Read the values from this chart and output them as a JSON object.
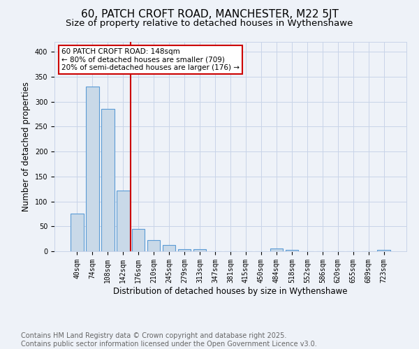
{
  "title": "60, PATCH CROFT ROAD, MANCHESTER, M22 5JT",
  "subtitle": "Size of property relative to detached houses in Wythenshawe",
  "xlabel": "Distribution of detached houses by size in Wythenshawe",
  "ylabel": "Number of detached properties",
  "bar_labels": [
    "40sqm",
    "74sqm",
    "108sqm",
    "142sqm",
    "176sqm",
    "210sqm",
    "245sqm",
    "279sqm",
    "313sqm",
    "347sqm",
    "381sqm",
    "415sqm",
    "450sqm",
    "484sqm",
    "518sqm",
    "552sqm",
    "586sqm",
    "620sqm",
    "655sqm",
    "689sqm",
    "723sqm"
  ],
  "bar_values": [
    75,
    330,
    285,
    122,
    45,
    23,
    13,
    4,
    4,
    0,
    0,
    0,
    0,
    5,
    3,
    0,
    0,
    0,
    0,
    0,
    3
  ],
  "bar_color": "#c9d9e8",
  "bar_edge_color": "#5b9bd5",
  "annotation_line1": "60 PATCH CROFT ROAD: 148sqm",
  "annotation_line2": "← 80% of detached houses are smaller (709)",
  "annotation_line3": "20% of semi-detached houses are larger (176) →",
  "annotation_box_color": "#ffffff",
  "annotation_box_edge_color": "#cc0000",
  "vline_x": 3.5,
  "vline_color": "#cc0000",
  "grid_color": "#c8d4e8",
  "bg_color": "#eef2f8",
  "footer_text": "Contains HM Land Registry data © Crown copyright and database right 2025.\nContains public sector information licensed under the Open Government Licence v3.0.",
  "ylim": [
    0,
    420
  ],
  "title_fontsize": 11,
  "subtitle_fontsize": 9.5,
  "footer_fontsize": 7,
  "ylabel_fontsize": 8.5,
  "xlabel_fontsize": 8.5,
  "tick_fontsize": 7
}
